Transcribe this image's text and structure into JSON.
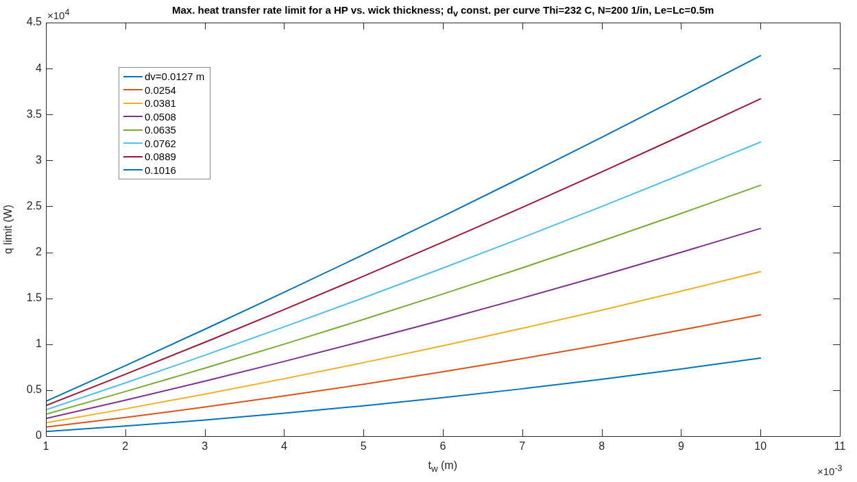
{
  "chart_data": {
    "type": "line",
    "title": "Max. heat transfer rate limit for a HP vs. wick thickness; d$_{v}$ const. per curve Thi=232 C, N=200 1/in, Le=Lc=0.5m",
    "xlabel": "t$_{w}$ (m)",
    "ylabel": "q limit (W)",
    "annotations": [
      "×10$^{4}$",
      "×10$^{-3}$"
    ],
    "x": [
      1,
      2,
      3,
      4,
      5,
      6,
      7,
      8,
      9,
      10
    ],
    "series": [
      {
        "name": "dv=0.0127 m",
        "color": "#0072bd",
        "values": [
          0.051,
          0.109,
          0.175,
          0.249,
          0.33,
          0.419,
          0.515,
          0.619,
          0.731,
          0.85
        ]
      },
      {
        "name": "0.0254",
        "color": "#d95319",
        "values": [
          0.098,
          0.203,
          0.316,
          0.437,
          0.565,
          0.701,
          0.844,
          0.995,
          1.154,
          1.32
        ]
      },
      {
        "name": "0.0381",
        "color": "#edb120",
        "values": [
          0.145,
          0.297,
          0.457,
          0.625,
          0.8,
          0.983,
          1.173,
          1.371,
          1.577,
          1.79
        ]
      },
      {
        "name": "0.0508",
        "color": "#7e2f8e",
        "values": [
          0.192,
          0.391,
          0.598,
          0.813,
          1.035,
          1.265,
          1.502,
          1.747,
          2.0,
          2.26
        ]
      },
      {
        "name": "0.0635",
        "color": "#77ac30",
        "values": [
          0.239,
          0.485,
          0.739,
          1.001,
          1.27,
          1.547,
          1.831,
          2.123,
          2.423,
          2.73
        ]
      },
      {
        "name": "0.0762",
        "color": "#4dbeee",
        "values": [
          0.286,
          0.579,
          0.88,
          1.189,
          1.505,
          1.829,
          2.16,
          2.499,
          2.846,
          3.2
        ]
      },
      {
        "name": "0.0889",
        "color": "#a2142f",
        "values": [
          0.333,
          0.673,
          1.021,
          1.377,
          1.74,
          2.111,
          2.489,
          2.875,
          3.269,
          3.67
        ]
      },
      {
        "name": "0.1016",
        "color": "#0072bd",
        "values": [
          0.38,
          0.767,
          1.162,
          1.565,
          1.975,
          2.393,
          2.818,
          3.251,
          3.692,
          4.14
        ]
      }
    ],
    "xlim": [
      1,
      11
    ],
    "xticks": [
      1,
      2,
      3,
      4,
      5,
      6,
      7,
      8,
      9,
      10,
      11
    ],
    "ylim": [
      0,
      4.5
    ],
    "yticks": [
      0,
      0.5,
      1,
      1.5,
      2,
      2.5,
      3,
      3.5,
      4,
      4.5
    ],
    "grid": false,
    "legend": "top left",
    "marker": "none",
    "line_style": "solid"
  }
}
